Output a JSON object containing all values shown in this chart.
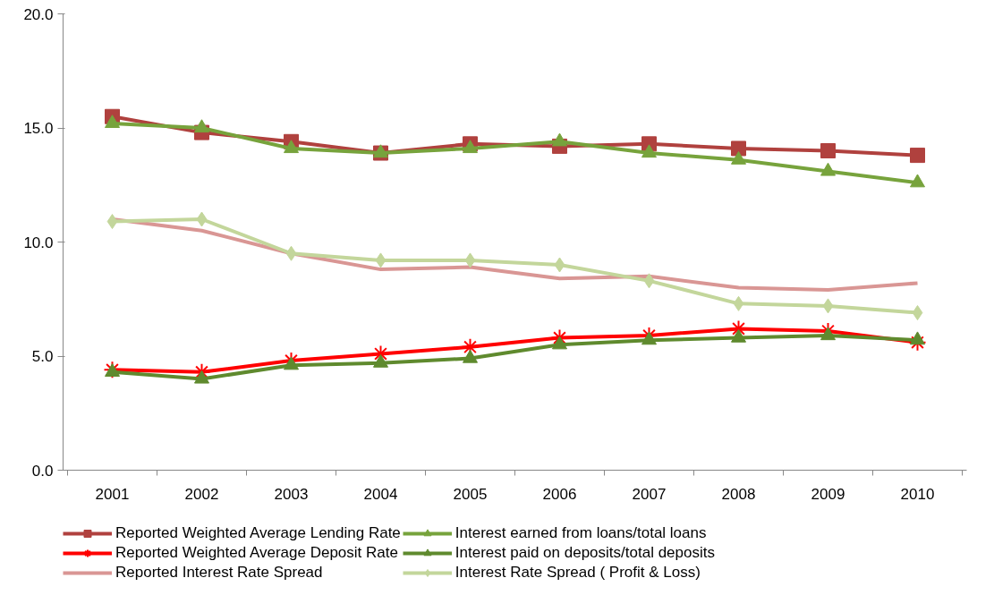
{
  "chart_data": {
    "type": "line",
    "categories": [
      "2001",
      "2002",
      "2003",
      "2004",
      "2005",
      "2006",
      "2007",
      "2008",
      "2009",
      "2010"
    ],
    "series": [
      {
        "name": "Reported Weighted Average Lending Rate",
        "color": "#b0413e",
        "marker": "square",
        "values": [
          15.5,
          14.8,
          14.4,
          13.9,
          14.3,
          14.2,
          14.3,
          14.1,
          14.0,
          13.8
        ]
      },
      {
        "name": "Interest earned from loans/total loans",
        "color": "#77a33c",
        "marker": "triangle",
        "values": [
          15.2,
          15.0,
          14.1,
          13.9,
          14.1,
          14.4,
          13.9,
          13.6,
          13.1,
          12.6
        ]
      },
      {
        "name": "Reported Weighted Average Deposit Rate",
        "color": "#ff0000",
        "marker": "cross",
        "values": [
          4.4,
          4.3,
          4.8,
          5.1,
          5.4,
          5.8,
          5.9,
          6.2,
          6.1,
          5.6
        ]
      },
      {
        "name": "Interest paid on deposits/total deposits",
        "color": "#5f8a2e",
        "marker": "triangle",
        "values": [
          4.3,
          4.0,
          4.6,
          4.7,
          4.9,
          5.5,
          5.7,
          5.8,
          5.9,
          5.7
        ]
      },
      {
        "name": "Reported Interest Rate Spread",
        "color": "#d99694",
        "marker": "none",
        "values": [
          11.0,
          10.5,
          9.5,
          8.8,
          8.9,
          8.4,
          8.5,
          8.0,
          7.9,
          8.2
        ]
      },
      {
        "name": "Interest Rate Spread ( Profit & Loss)",
        "color": "#c3d69b",
        "marker": "diamond",
        "values": [
          10.9,
          11.0,
          9.5,
          9.2,
          9.2,
          9.0,
          8.3,
          7.3,
          7.2,
          6.9
        ]
      }
    ],
    "ylim": [
      0,
      20
    ],
    "yticks": [
      {
        "value": 0,
        "label": "0.0"
      },
      {
        "value": 5,
        "label": "5.0"
      },
      {
        "value": 10,
        "label": "10.0"
      },
      {
        "value": 15,
        "label": "15.0"
      },
      {
        "value": 20,
        "label": "20.0"
      }
    ],
    "grid": false,
    "legend": "bottom",
    "line_style": "solid"
  }
}
